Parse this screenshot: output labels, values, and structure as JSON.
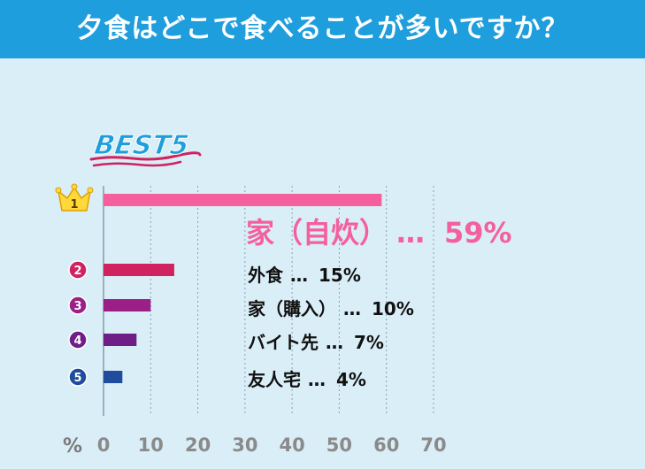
{
  "header": {
    "title": "夕食はどこで食べることが多いですか？"
  },
  "badge": {
    "text": "BEST5"
  },
  "colors": {
    "header_bg": "#1e9edc",
    "panel_bg": "#daeef7",
    "title_text": "#ffffff",
    "grid": "#8aa0b2",
    "axis_text": "#8a8a8a"
  },
  "chart_data": {
    "type": "bar",
    "orientation": "horizontal",
    "title": "",
    "xlabel": "%",
    "ylabel": "",
    "xlim": [
      0,
      70
    ],
    "x_ticks": [
      0,
      10,
      20,
      30,
      40,
      50,
      60,
      70
    ],
    "grid": true,
    "separator": "…",
    "categories": [
      "家（自炊）",
      "外食",
      "家（購入）",
      "バイト先",
      "友人宅"
    ],
    "values": [
      59,
      15,
      10,
      7,
      4
    ],
    "ranks": [
      "1",
      "2",
      "3",
      "4",
      "5"
    ],
    "colors": [
      "#f4609d",
      "#d0225f",
      "#9a1f86",
      "#6e1e86",
      "#1f4c9c"
    ],
    "label_colors": [
      "#f4609d",
      "#111111",
      "#111111",
      "#111111",
      "#111111"
    ]
  }
}
